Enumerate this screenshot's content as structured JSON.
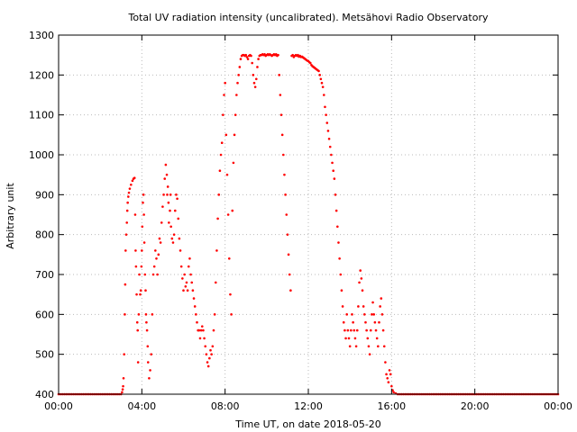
{
  "chart_data": {
    "type": "scatter",
    "title": "Total UV radiation intensity (uncalibrated). Metsähovi Radio Observatory",
    "xlabel": "Time UT, on date 2018-05-20",
    "ylabel": "Arbitrary unit",
    "xlim_hours": [
      0,
      24
    ],
    "ylim": [
      400,
      1300
    ],
    "x_ticks": [
      {
        "hour": 0,
        "label": "00:00"
      },
      {
        "hour": 4,
        "label": "04:00"
      },
      {
        "hour": 8,
        "label": "08:00"
      },
      {
        "hour": 12,
        "label": "12:00"
      },
      {
        "hour": 16,
        "label": "16:00"
      },
      {
        "hour": 20,
        "label": "20:00"
      },
      {
        "hour": 24,
        "label": "00:00"
      }
    ],
    "y_ticks": [
      400,
      500,
      600,
      700,
      800,
      900,
      1000,
      1100,
      1200,
      1300
    ],
    "grid": true,
    "legend": "none",
    "series_color": "#ff0000",
    "points": [
      [
        0.0,
        400
      ],
      [
        1.0,
        400
      ],
      [
        2.0,
        400
      ],
      [
        3.0,
        400
      ],
      [
        3.05,
        405
      ],
      [
        3.08,
        412
      ],
      [
        3.1,
        420
      ],
      [
        3.12,
        440
      ],
      [
        3.15,
        500
      ],
      [
        3.18,
        600
      ],
      [
        3.2,
        675
      ],
      [
        3.22,
        760
      ],
      [
        3.25,
        800
      ],
      [
        3.28,
        830
      ],
      [
        3.3,
        860
      ],
      [
        3.32,
        880
      ],
      [
        3.35,
        895
      ],
      [
        3.38,
        905
      ],
      [
        3.42,
        915
      ],
      [
        3.48,
        925
      ],
      [
        3.55,
        935
      ],
      [
        3.6,
        940
      ],
      [
        3.65,
        942
      ],
      [
        3.68,
        850
      ],
      [
        3.7,
        760
      ],
      [
        3.72,
        720
      ],
      [
        3.75,
        650
      ],
      [
        3.78,
        580
      ],
      [
        3.8,
        560
      ],
      [
        3.82,
        480
      ],
      [
        3.85,
        600
      ],
      [
        3.88,
        700
      ],
      [
        3.92,
        650
      ],
      [
        3.95,
        660
      ],
      [
        3.98,
        720
      ],
      [
        4.0,
        760
      ],
      [
        4.02,
        820
      ],
      [
        4.05,
        880
      ],
      [
        4.08,
        900
      ],
      [
        4.1,
        850
      ],
      [
        4.12,
        780
      ],
      [
        4.15,
        700
      ],
      [
        4.18,
        660
      ],
      [
        4.2,
        600
      ],
      [
        4.22,
        580
      ],
      [
        4.25,
        560
      ],
      [
        4.28,
        520
      ],
      [
        4.3,
        480
      ],
      [
        4.35,
        440
      ],
      [
        4.4,
        460
      ],
      [
        4.45,
        500
      ],
      [
        4.5,
        600
      ],
      [
        4.55,
        700
      ],
      [
        4.6,
        720
      ],
      [
        4.65,
        760
      ],
      [
        4.7,
        740
      ],
      [
        4.75,
        700
      ],
      [
        4.8,
        750
      ],
      [
        4.85,
        790
      ],
      [
        4.9,
        780
      ],
      [
        4.95,
        830
      ],
      [
        5.0,
        870
      ],
      [
        5.05,
        900
      ],
      [
        5.1,
        940
      ],
      [
        5.15,
        975
      ],
      [
        5.2,
        950
      ],
      [
        5.22,
        900
      ],
      [
        5.25,
        920
      ],
      [
        5.28,
        880
      ],
      [
        5.3,
        830
      ],
      [
        5.35,
        860
      ],
      [
        5.38,
        900
      ],
      [
        5.4,
        820
      ],
      [
        5.45,
        790
      ],
      [
        5.5,
        780
      ],
      [
        5.55,
        800
      ],
      [
        5.6,
        860
      ],
      [
        5.65,
        900
      ],
      [
        5.7,
        890
      ],
      [
        5.75,
        840
      ],
      [
        5.8,
        790
      ],
      [
        5.85,
        760
      ],
      [
        5.9,
        720
      ],
      [
        5.95,
        690
      ],
      [
        6.0,
        660
      ],
      [
        6.05,
        700
      ],
      [
        6.1,
        670
      ],
      [
        6.15,
        680
      ],
      [
        6.2,
        660
      ],
      [
        6.25,
        720
      ],
      [
        6.3,
        740
      ],
      [
        6.35,
        700
      ],
      [
        6.4,
        680
      ],
      [
        6.45,
        660
      ],
      [
        6.5,
        640
      ],
      [
        6.55,
        620
      ],
      [
        6.6,
        600
      ],
      [
        6.65,
        580
      ],
      [
        6.7,
        560
      ],
      [
        6.75,
        560
      ],
      [
        6.8,
        540
      ],
      [
        6.85,
        560
      ],
      [
        6.9,
        570
      ],
      [
        6.95,
        560
      ],
      [
        7.0,
        540
      ],
      [
        7.05,
        520
      ],
      [
        7.1,
        500
      ],
      [
        7.15,
        480
      ],
      [
        7.2,
        470
      ],
      [
        7.25,
        490
      ],
      [
        7.3,
        510
      ],
      [
        7.35,
        500
      ],
      [
        7.4,
        520
      ],
      [
        7.45,
        560
      ],
      [
        7.5,
        600
      ],
      [
        7.55,
        680
      ],
      [
        7.6,
        760
      ],
      [
        7.65,
        840
      ],
      [
        7.7,
        900
      ],
      [
        7.75,
        960
      ],
      [
        7.8,
        1000
      ],
      [
        7.85,
        1030
      ],
      [
        7.9,
        1100
      ],
      [
        7.95,
        1150
      ],
      [
        8.0,
        1180
      ],
      [
        8.05,
        1050
      ],
      [
        8.1,
        950
      ],
      [
        8.15,
        850
      ],
      [
        8.2,
        740
      ],
      [
        8.25,
        650
      ],
      [
        8.3,
        600
      ],
      [
        8.35,
        860
      ],
      [
        8.4,
        980
      ],
      [
        8.45,
        1050
      ],
      [
        8.5,
        1100
      ],
      [
        8.55,
        1150
      ],
      [
        8.6,
        1180
      ],
      [
        8.65,
        1200
      ],
      [
        8.7,
        1220
      ],
      [
        8.75,
        1240
      ],
      [
        8.8,
        1248
      ],
      [
        8.85,
        1250
      ],
      [
        8.9,
        1250
      ],
      [
        8.95,
        1248
      ],
      [
        9.0,
        1250
      ],
      [
        9.05,
        1245
      ],
      [
        9.1,
        1240
      ],
      [
        9.15,
        1248
      ],
      [
        9.2,
        1250
      ],
      [
        9.25,
        1248
      ],
      [
        9.3,
        1230
      ],
      [
        9.35,
        1200
      ],
      [
        9.4,
        1180
      ],
      [
        9.45,
        1170
      ],
      [
        9.5,
        1190
      ],
      [
        9.55,
        1220
      ],
      [
        9.6,
        1240
      ],
      [
        9.65,
        1248
      ],
      [
        9.7,
        1250
      ],
      [
        9.75,
        1250
      ],
      [
        9.8,
        1252
      ],
      [
        9.85,
        1250
      ],
      [
        9.9,
        1252
      ],
      [
        9.95,
        1248
      ],
      [
        10.0,
        1250
      ],
      [
        10.05,
        1252
      ],
      [
        10.1,
        1250
      ],
      [
        10.15,
        1252
      ],
      [
        10.2,
        1250
      ],
      [
        10.25,
        1248
      ],
      [
        10.3,
        1250
      ],
      [
        10.35,
        1252
      ],
      [
        10.4,
        1250
      ],
      [
        10.45,
        1252
      ],
      [
        10.5,
        1248
      ],
      [
        10.55,
        1250
      ],
      [
        10.6,
        1200
      ],
      [
        10.65,
        1150
      ],
      [
        10.7,
        1100
      ],
      [
        10.75,
        1050
      ],
      [
        10.8,
        1000
      ],
      [
        10.85,
        950
      ],
      [
        10.9,
        900
      ],
      [
        10.95,
        850
      ],
      [
        11.0,
        800
      ],
      [
        11.05,
        750
      ],
      [
        11.1,
        700
      ],
      [
        11.15,
        660
      ],
      [
        11.2,
        1248
      ],
      [
        11.25,
        1250
      ],
      [
        11.3,
        1245
      ],
      [
        11.35,
        1248
      ],
      [
        11.4,
        1250
      ],
      [
        11.45,
        1248
      ],
      [
        11.5,
        1250
      ],
      [
        11.55,
        1246
      ],
      [
        11.6,
        1248
      ],
      [
        11.65,
        1245
      ],
      [
        11.7,
        1246
      ],
      [
        11.75,
        1244
      ],
      [
        11.8,
        1242
      ],
      [
        11.85,
        1240
      ],
      [
        11.9,
        1238
      ],
      [
        11.95,
        1236
      ],
      [
        12.0,
        1235
      ],
      [
        12.05,
        1232
      ],
      [
        12.1,
        1230
      ],
      [
        12.15,
        1225
      ],
      [
        12.2,
        1222
      ],
      [
        12.25,
        1220
      ],
      [
        12.3,
        1218
      ],
      [
        12.35,
        1216
      ],
      [
        12.4,
        1214
      ],
      [
        12.45,
        1212
      ],
      [
        12.5,
        1210
      ],
      [
        12.55,
        1200
      ],
      [
        12.6,
        1190
      ],
      [
        12.65,
        1180
      ],
      [
        12.7,
        1170
      ],
      [
        12.75,
        1150
      ],
      [
        12.8,
        1120
      ],
      [
        12.85,
        1100
      ],
      [
        12.9,
        1080
      ],
      [
        12.95,
        1060
      ],
      [
        13.0,
        1040
      ],
      [
        13.05,
        1020
      ],
      [
        13.1,
        1000
      ],
      [
        13.15,
        980
      ],
      [
        13.2,
        960
      ],
      [
        13.25,
        940
      ],
      [
        13.3,
        900
      ],
      [
        13.35,
        860
      ],
      [
        13.4,
        820
      ],
      [
        13.45,
        780
      ],
      [
        13.5,
        740
      ],
      [
        13.55,
        700
      ],
      [
        13.6,
        660
      ],
      [
        13.65,
        620
      ],
      [
        13.7,
        580
      ],
      [
        13.75,
        560
      ],
      [
        13.8,
        540
      ],
      [
        13.85,
        600
      ],
      [
        13.9,
        560
      ],
      [
        13.95,
        540
      ],
      [
        14.0,
        520
      ],
      [
        14.05,
        560
      ],
      [
        14.1,
        600
      ],
      [
        14.15,
        580
      ],
      [
        14.2,
        560
      ],
      [
        14.25,
        540
      ],
      [
        14.3,
        520
      ],
      [
        14.35,
        560
      ],
      [
        14.4,
        620
      ],
      [
        14.45,
        680
      ],
      [
        14.5,
        710
      ],
      [
        14.55,
        690
      ],
      [
        14.6,
        660
      ],
      [
        14.65,
        620
      ],
      [
        14.7,
        600
      ],
      [
        14.75,
        580
      ],
      [
        14.8,
        560
      ],
      [
        14.85,
        540
      ],
      [
        14.9,
        520
      ],
      [
        14.95,
        500
      ],
      [
        15.0,
        560
      ],
      [
        15.05,
        600
      ],
      [
        15.1,
        630
      ],
      [
        15.15,
        600
      ],
      [
        15.2,
        580
      ],
      [
        15.25,
        560
      ],
      [
        15.3,
        540
      ],
      [
        15.35,
        520
      ],
      [
        15.4,
        580
      ],
      [
        15.45,
        620
      ],
      [
        15.5,
        640
      ],
      [
        15.55,
        600
      ],
      [
        15.6,
        560
      ],
      [
        15.65,
        520
      ],
      [
        15.7,
        480
      ],
      [
        15.75,
        450
      ],
      [
        15.8,
        440
      ],
      [
        15.85,
        430
      ],
      [
        15.9,
        460
      ],
      [
        15.95,
        450
      ],
      [
        16.0,
        420
      ],
      [
        16.05,
        410
      ],
      [
        16.1,
        405
      ],
      [
        16.2,
        402
      ],
      [
        16.3,
        400
      ],
      [
        17.0,
        400
      ],
      [
        18.0,
        400
      ],
      [
        20.0,
        400
      ],
      [
        22.0,
        400
      ],
      [
        24.0,
        400
      ]
    ]
  }
}
